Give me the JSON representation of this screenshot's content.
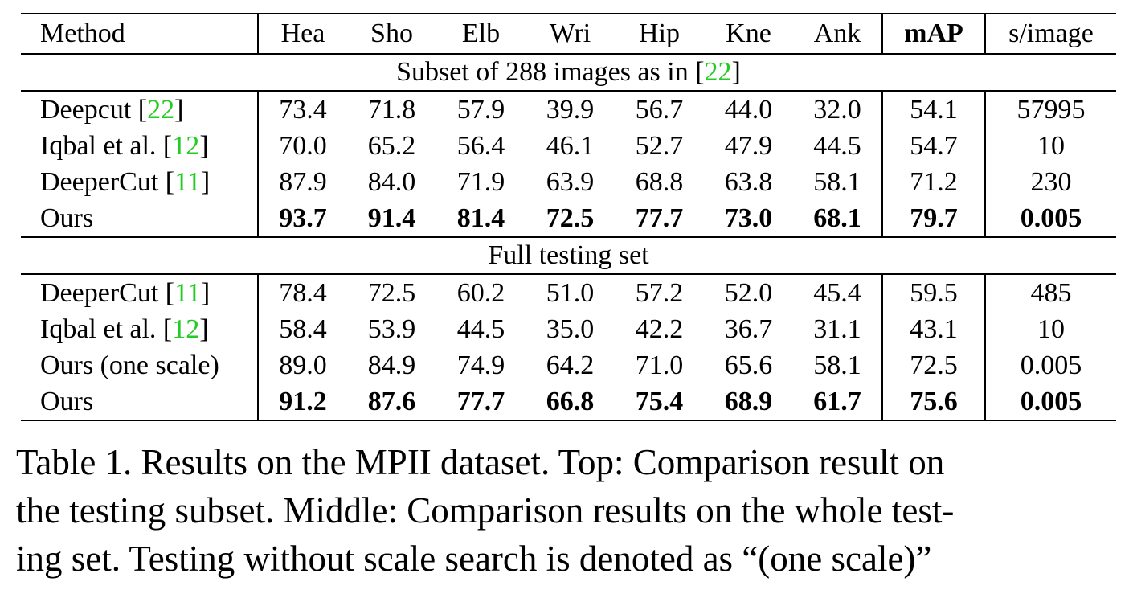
{
  "table": {
    "headers": [
      "Method",
      "Hea",
      "Sho",
      "Elb",
      "Wri",
      "Hip",
      "Kne",
      "Ank",
      "mAP",
      "s/image"
    ],
    "sections": [
      {
        "title_prefix": "Subset of 288 images as in [",
        "title_cite": "22",
        "title_suffix": "]",
        "rows": [
          {
            "method": "Deepcut [",
            "cite": "22",
            "close": "]",
            "values": [
              "73.4",
              "71.8",
              "57.9",
              "39.9",
              "56.7",
              "44.0",
              "32.0"
            ],
            "map": "54.1",
            "sec": "57995",
            "bold": false
          },
          {
            "method": "Iqbal et al. [",
            "cite": "12",
            "close": "]",
            "values": [
              "70.0",
              "65.2",
              "56.4",
              "46.1",
              "52.7",
              "47.9",
              "44.5"
            ],
            "map": "54.7",
            "sec": "10",
            "bold": false
          },
          {
            "method": "DeeperCut [",
            "cite": "11",
            "close": "]",
            "values": [
              "87.9",
              "84.0",
              "71.9",
              "63.9",
              "68.8",
              "63.8",
              "58.1"
            ],
            "map": "71.2",
            "sec": "230",
            "bold": false
          },
          {
            "method": "Ours",
            "cite": "",
            "close": "",
            "values": [
              "93.7",
              "91.4",
              "81.4",
              "72.5",
              "77.7",
              "73.0",
              "68.1"
            ],
            "map": "79.7",
            "sec": "0.005",
            "bold": true
          }
        ]
      },
      {
        "title_prefix": "Full testing set",
        "title_cite": "",
        "title_suffix": "",
        "rows": [
          {
            "method": "DeeperCut [",
            "cite": "11",
            "close": "]",
            "values": [
              "78.4",
              "72.5",
              "60.2",
              "51.0",
              "57.2",
              "52.0",
              "45.4"
            ],
            "map": "59.5",
            "sec": "485",
            "bold": false
          },
          {
            "method": "Iqbal et al. [",
            "cite": "12",
            "close": "]",
            "values": [
              "58.4",
              "53.9",
              "44.5",
              "35.0",
              "42.2",
              "36.7",
              "31.1"
            ],
            "map": "43.1",
            "sec": "10",
            "bold": false
          },
          {
            "method": "Ours (one scale)",
            "cite": "",
            "close": "",
            "values": [
              "89.0",
              "84.9",
              "74.9",
              "64.2",
              "71.0",
              "65.6",
              "58.1"
            ],
            "map": "72.5",
            "sec": "0.005",
            "bold": false
          },
          {
            "method": "Ours",
            "cite": "",
            "close": "",
            "values": [
              "91.2",
              "87.6",
              "77.7",
              "66.8",
              "75.4",
              "68.9",
              "61.7"
            ],
            "map": "75.6",
            "sec": "0.005",
            "bold": true
          }
        ]
      }
    ]
  },
  "caption": {
    "lines": [
      "Table 1. Results on the MPII dataset.  Top: Comparison result on",
      "the testing subset. Middle: Comparison results on the whole test-",
      "ing set. Testing without scale search is denoted as “(one scale)”"
    ]
  },
  "colors": {
    "citation": "#22cc22",
    "text": "#000000",
    "background": "#ffffff"
  }
}
